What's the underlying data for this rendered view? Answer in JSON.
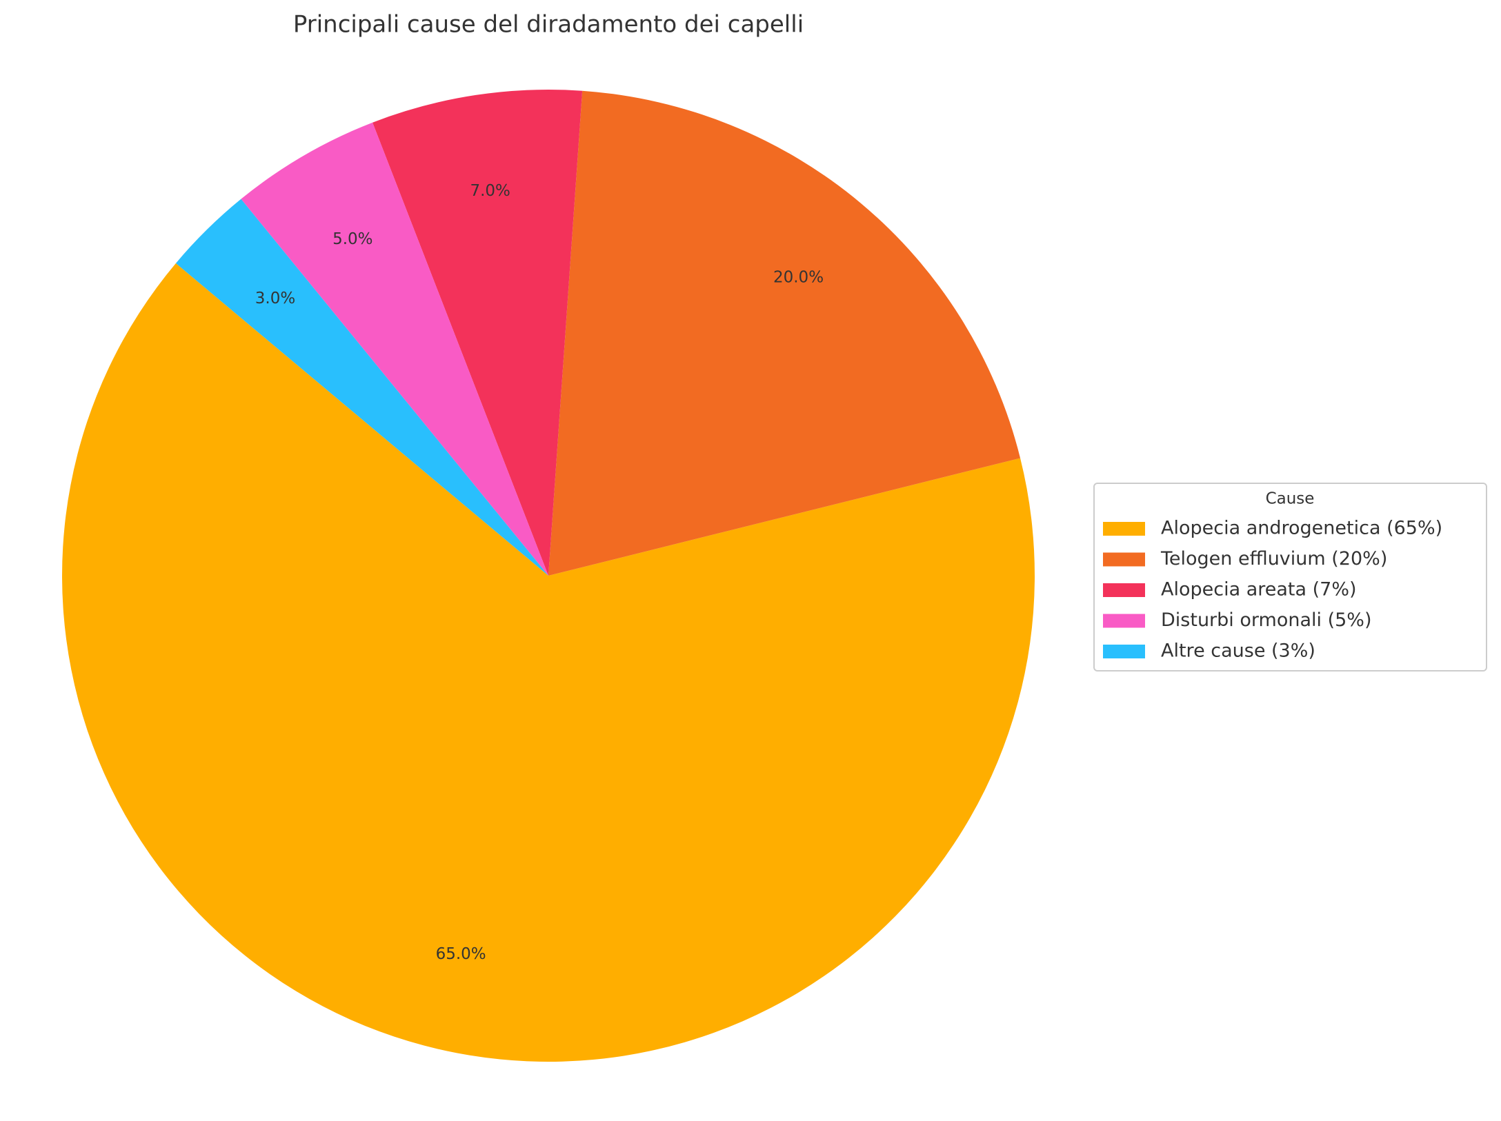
{
  "chart_data": {
    "type": "pie",
    "title": "Principali cause del diradamento dei capelli",
    "categories": [
      "Alopecia androgenetica (65%)",
      "Telogen effluvium (20%)",
      "Alopecia areata (7%)",
      "Disturbi ormonali (5%)",
      "Altre cause (3%)"
    ],
    "values": [
      65,
      20,
      7,
      5,
      3
    ],
    "value_labels": [
      "65.0%",
      "20.0%",
      "7.0%",
      "5.0%",
      "3.0%"
    ],
    "colors": [
      "#ffae00",
      "#f26b22",
      "#f3325a",
      "#f95bc5",
      "#29bffd"
    ],
    "start_angle": 140,
    "legend_title": "Cause",
    "legend_position": "right"
  }
}
